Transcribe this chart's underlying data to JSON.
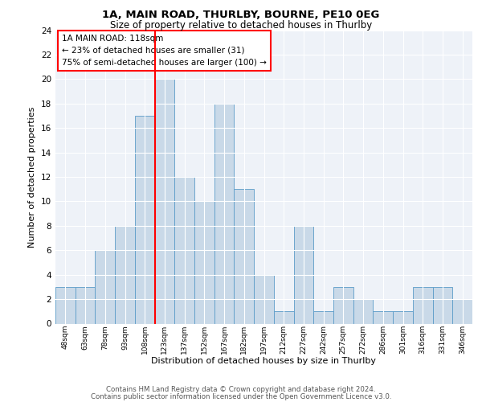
{
  "title1": "1A, MAIN ROAD, THURLBY, BOURNE, PE10 0EG",
  "title2": "Size of property relative to detached houses in Thurlby",
  "xlabel": "Distribution of detached houses by size in Thurlby",
  "ylabel": "Number of detached properties",
  "categories": [
    "48sqm",
    "63sqm",
    "78sqm",
    "93sqm",
    "108sqm",
    "123sqm",
    "137sqm",
    "152sqm",
    "167sqm",
    "182sqm",
    "197sqm",
    "212sqm",
    "227sqm",
    "242sqm",
    "257sqm",
    "272sqm",
    "286sqm",
    "301sqm",
    "316sqm",
    "331sqm",
    "346sqm"
  ],
  "values": [
    3,
    3,
    6,
    8,
    17,
    20,
    12,
    10,
    18,
    11,
    4,
    1,
    8,
    1,
    3,
    2,
    1,
    1,
    3,
    3,
    2
  ],
  "bar_color": "#c9d9e8",
  "bar_edge_color": "#5b9bc8",
  "vline_x_idx": 5,
  "vline_color": "red",
  "annotation_text": "1A MAIN ROAD: 118sqm\n← 23% of detached houses are smaller (31)\n75% of semi-detached houses are larger (100) →",
  "annotation_box_color": "white",
  "annotation_box_edge": "red",
  "footer1": "Contains HM Land Registry data © Crown copyright and database right 2024.",
  "footer2": "Contains public sector information licensed under the Open Government Licence v3.0.",
  "ylim": [
    0,
    24
  ],
  "yticks": [
    0,
    2,
    4,
    6,
    8,
    10,
    12,
    14,
    16,
    18,
    20,
    22,
    24
  ],
  "bg_color": "#eef2f8",
  "grid_color": "white"
}
